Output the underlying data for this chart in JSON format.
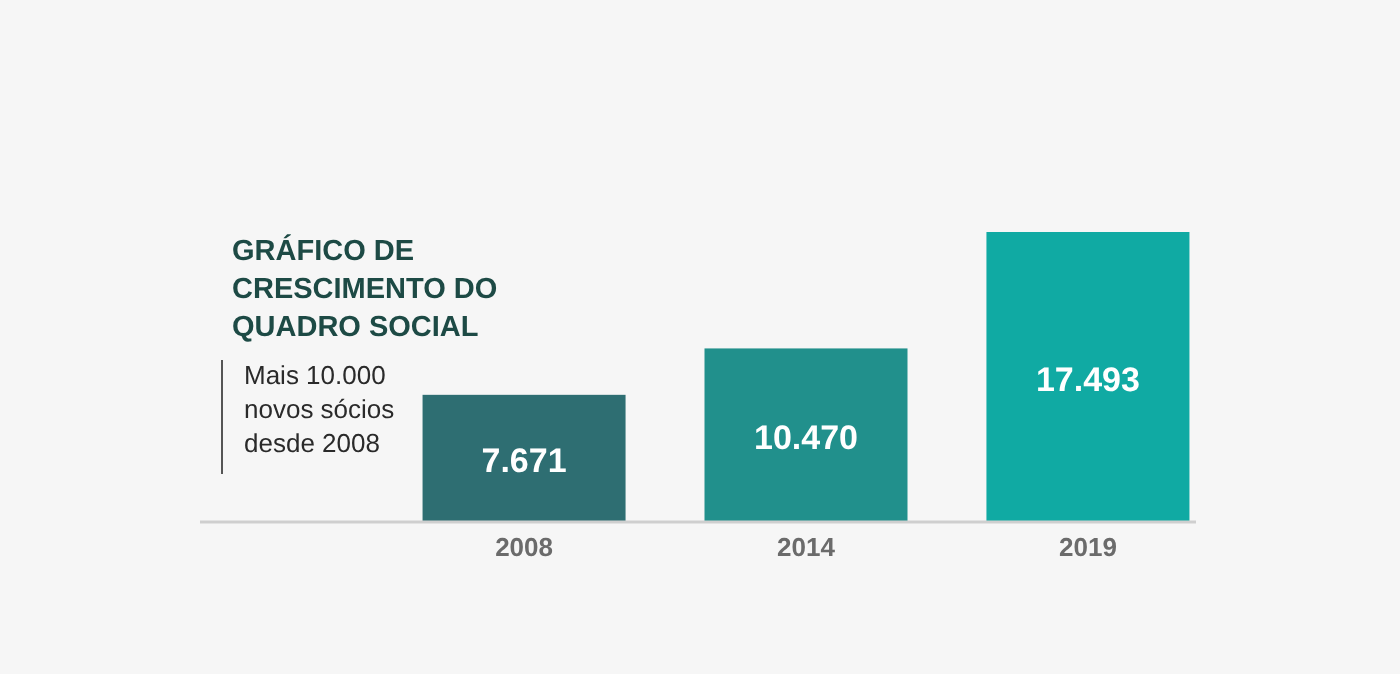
{
  "chart_data": {
    "type": "bar",
    "title": "GRÁFICO DE\nCRESCIMENTO DO\nQUADRO SOCIAL",
    "annotations": [
      "Mais 10.000\nnovos sócios\ndesde 2008"
    ],
    "categories": [
      "2008",
      "2014",
      "2019"
    ],
    "values": [
      7671,
      10470,
      17493
    ],
    "value_labels": [
      "7.671",
      "10.470",
      "17.493"
    ],
    "colors": [
      "#2e6e72",
      "#21908c",
      "#10aaa3"
    ]
  }
}
